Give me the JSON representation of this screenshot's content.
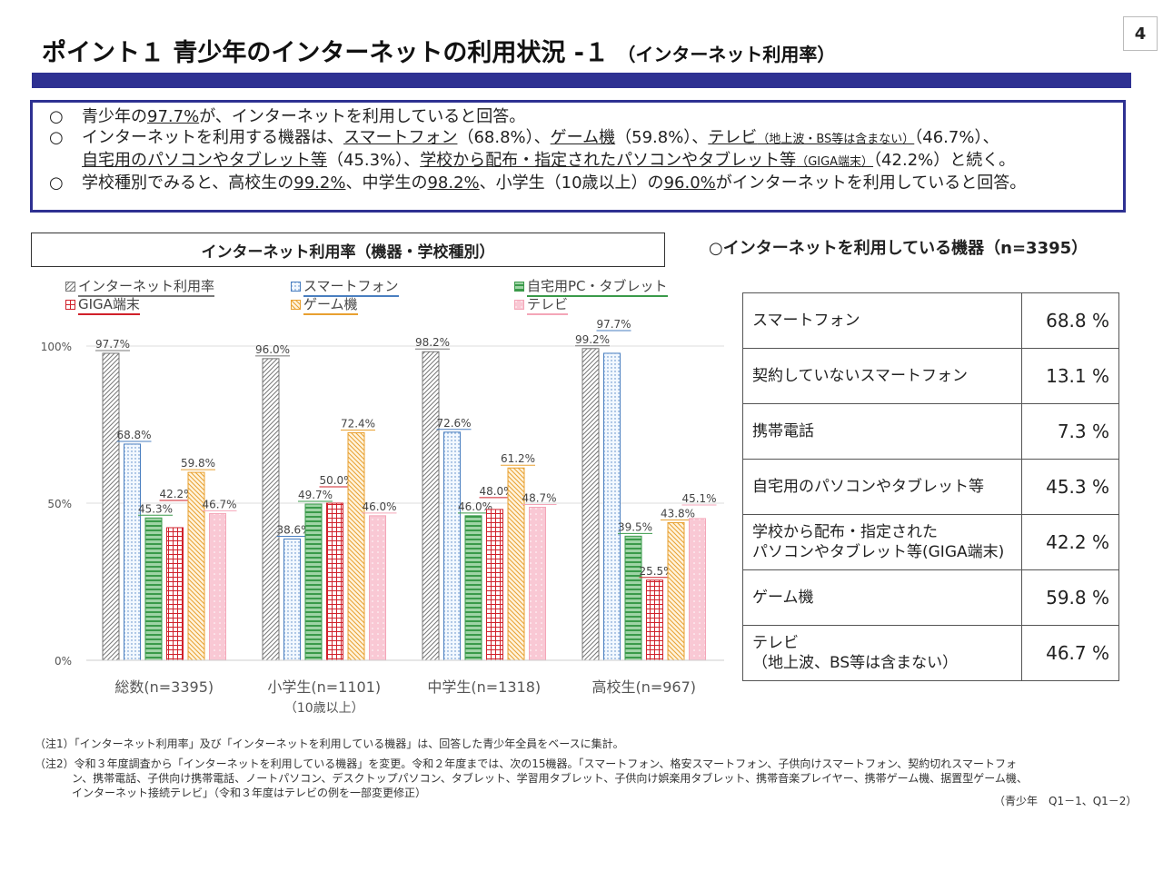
{
  "page": {
    "title": "ポイント１ 青少年のインターネットの利用状況 -１",
    "title_sub": "（インターネット利用率）",
    "page_number": "4"
  },
  "summary": {
    "bullet": "○",
    "lines": [
      [
        {
          "t": "青少年の"
        },
        {
          "t": "97.7%",
          "u": true
        },
        {
          "t": "が、インターネットを利用していると回答。"
        }
      ],
      [
        {
          "t": "インターネットを利用する機器は、"
        },
        {
          "t": "スマートフォン",
          "u": true
        },
        {
          "t": "（68.8%）、"
        },
        {
          "t": "ゲーム機",
          "u": true
        },
        {
          "t": "（59.8%）、"
        },
        {
          "t": "テレビ",
          "u": true
        },
        {
          "t": "（地上波・BS等は含まない）",
          "u": true,
          "s": true
        },
        {
          "t": "（46.7%）、"
        }
      ],
      [
        {
          "t": "自宅用のパソコンやタブレット等",
          "u": true
        },
        {
          "t": "（45.3%）、"
        },
        {
          "t": "学校から配布・指定されたパソコンやタブレット等",
          "u": true
        },
        {
          "t": "（GIGA端末）",
          "u": true,
          "s": true
        },
        {
          "t": "（42.2%）と続く。"
        }
      ],
      [
        {
          "t": "学校種別でみると、高校生の"
        },
        {
          "t": "99.2%",
          "u": true
        },
        {
          "t": "、中学生の"
        },
        {
          "t": "98.2%",
          "u": true
        },
        {
          "t": "、小学生（10歳以上）の"
        },
        {
          "t": "96.0%",
          "u": true
        },
        {
          "t": "がインターネットを利用していると回答。"
        }
      ]
    ]
  },
  "chart_data": {
    "type": "bar",
    "title": "インターネット利用率（機器・学校種別）",
    "categories": [
      "総数(n=3395)",
      "小学生(n=1101)",
      "中学生(n=1318)",
      "高校生(n=967)"
    ],
    "category_sublabels": [
      "",
      "（10歳以上）",
      "",
      ""
    ],
    "ylim": [
      0,
      100
    ],
    "yticks": [
      "0%",
      "50%",
      "100%"
    ],
    "grid": true,
    "legend_position": "top",
    "series": [
      {
        "name": "インターネット利用率",
        "values": [
          97.7,
          96.0,
          98.2,
          99.2
        ],
        "color": "#777777",
        "pattern": "diag"
      },
      {
        "name": "スマートフォン",
        "values": [
          68.8,
          38.6,
          72.6,
          97.7
        ],
        "color": "#4a7fc0",
        "pattern": "dots"
      },
      {
        "name": "自宅用PC・タブレット",
        "values": [
          45.3,
          49.7,
          46.0,
          39.5
        ],
        "color": "#3a9a4a",
        "pattern": "hlines"
      },
      {
        "name": "GIGA端末",
        "values": [
          42.2,
          50.0,
          48.0,
          25.5
        ],
        "color": "#d0202a",
        "pattern": "grid"
      },
      {
        "name": "ゲーム機",
        "values": [
          59.8,
          72.4,
          61.2,
          43.8
        ],
        "color": "#e8a030",
        "pattern": "rdiag"
      },
      {
        "name": "テレビ",
        "values": [
          46.7,
          46.0,
          48.7,
          45.1
        ],
        "color": "#f4a6b8",
        "pattern": "pinkdots"
      }
    ]
  },
  "table": {
    "title": "○インターネットを利用している機器（n=3395）",
    "rows": [
      {
        "label": "スマートフォン",
        "value": "68.8 %"
      },
      {
        "label": "契約していないスマートフォン",
        "value": "13.1 %"
      },
      {
        "label": "携帯電話",
        "value": "7.3 %"
      },
      {
        "label": "自宅用のパソコンやタブレット等",
        "value": "45.3 %"
      },
      {
        "label": "学校から配布・指定された\nパソコンやタブレット等(GIGA端末)",
        "value": "42.2 %"
      },
      {
        "label": "ゲーム機",
        "value": "59.8 %"
      },
      {
        "label": "テレビ\n（地上波、BS等は含まない）",
        "value": "46.7 %"
      }
    ]
  },
  "notes": {
    "n1": "（注1）「インターネット利用率」及び「インターネットを利用している機器」は、回答した青少年全員をベースに集計。",
    "n2a": "（注2）令和３年度調査から「インターネットを利用している機器」を変更。令和２年度までは、次の15機器。「スマートフォン、格安スマートフォン、子供向けスマートフォン、契約切れスマートフォ",
    "n2b": "ン、携帯電話、子供向け携帯電話、ノートパソコン、デスクトップパソコン、タブレット、学習用タブレット、子供向け娯楽用タブレット、携帯音楽プレイヤー、携帯ゲーム機、据置型ゲーム機、",
    "n2c": "インターネット接続テレビ」（令和３年度はテレビの例を一部変更修正）",
    "source": "（青少年　Q1－1、Q1－2）"
  }
}
